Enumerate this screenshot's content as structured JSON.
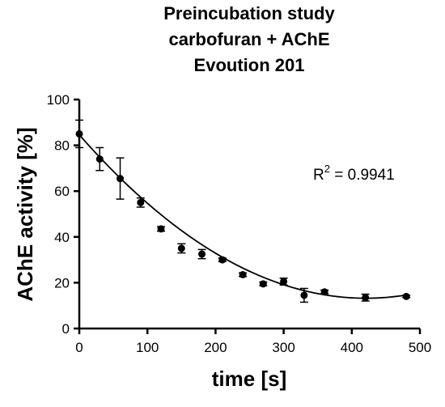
{
  "chart_data": {
    "type": "scatter",
    "title_lines": [
      "Preincubation study",
      "carbofuran + AChE",
      "Evoution 201"
    ],
    "xlabel": "time [s]",
    "ylabel": "AChE activity [%]",
    "xlim": [
      0,
      500
    ],
    "ylim": [
      0,
      100
    ],
    "x_ticks": [
      "0",
      "100",
      "200",
      "300",
      "400",
      "500"
    ],
    "y_ticks": [
      "0",
      "20",
      "40",
      "60",
      "80",
      "100"
    ],
    "annotation": {
      "r_label": "R",
      "r_power": "2",
      "r_rest": " = 0.9941"
    },
    "points": [
      {
        "x": 0,
        "y": 85,
        "err": 6
      },
      {
        "x": 30,
        "y": 74,
        "err": 5
      },
      {
        "x": 60,
        "y": 65.5,
        "err": 9
      },
      {
        "x": 90,
        "y": 55,
        "err": 2
      },
      {
        "x": 120,
        "y": 43.5,
        "err": 1
      },
      {
        "x": 150,
        "y": 35,
        "err": 2
      },
      {
        "x": 180,
        "y": 32.5,
        "err": 2
      },
      {
        "x": 210,
        "y": 30,
        "err": 0.8
      },
      {
        "x": 240,
        "y": 23.5,
        "err": 0.8
      },
      {
        "x": 270,
        "y": 19.5,
        "err": 0.8
      },
      {
        "x": 300,
        "y": 20.5,
        "err": 1.5
      },
      {
        "x": 330,
        "y": 14.5,
        "err": 3
      },
      {
        "x": 360,
        "y": 16,
        "err": 0.8
      },
      {
        "x": 420,
        "y": 13.5,
        "err": 1.5
      },
      {
        "x": 480,
        "y": 14,
        "err": 0.5
      }
    ],
    "fit": {
      "type": "polynomial-2",
      "coefficients": [
        84.6,
        -0.3392,
        0.000403
      ]
    },
    "grid": false,
    "legend": "none"
  }
}
